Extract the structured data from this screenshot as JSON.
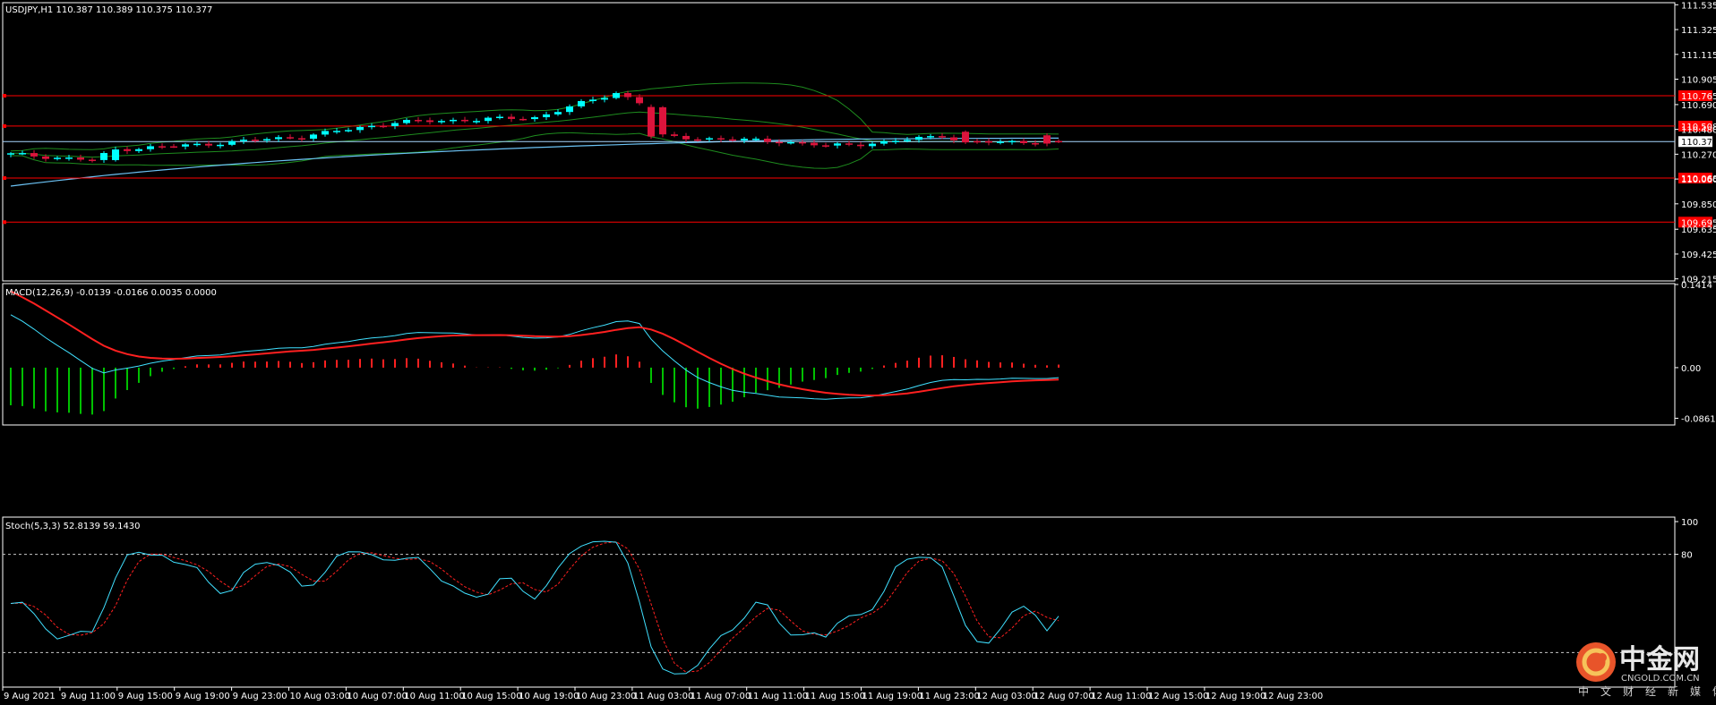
{
  "chart_data": [
    {
      "type": "candlestick",
      "panel": "main",
      "title": "USDJPY,H1  110.387 110.389 110.375 110.377",
      "y_ticks": [
        111.535,
        111.325,
        111.115,
        110.905,
        110.69,
        110.48,
        110.27,
        110.06,
        109.85,
        109.635,
        109.425,
        109.215
      ],
      "ylim": [
        109.205,
        111.545
      ],
      "current_price": 110.377,
      "horizontal_levels": [
        110.765,
        110.508,
        110.068,
        109.695
      ],
      "colors": {
        "bull": "#00ffff",
        "bear": "#dc143c",
        "levels": "#ff0000",
        "ma_long": "#6cc3f5",
        "bands": "#1e8c1e",
        "price_line": "#a8d8ff"
      },
      "overlays": [
        "moving average",
        "bollinger bands"
      ]
    },
    {
      "type": "line+histogram",
      "panel": "macd",
      "title": "MACD(12,26,9) -0.0139 -0.0166 0.0035 0.0000",
      "y_ticks": [
        0.1414,
        0.0,
        -0.0861
      ],
      "ylim": [
        -0.096,
        0.1414
      ],
      "colors": {
        "macd": "#40e0ff",
        "signal": "#ff2020",
        "hist_pos": "#ff2020",
        "hist_neg": "#00c000"
      }
    },
    {
      "type": "line",
      "panel": "stoch",
      "title": "Stoch(5,3,3) 52.8139 59.1430",
      "y_ticks": [
        100,
        80
      ],
      "ylim": [
        0,
        100
      ],
      "levels": [
        80,
        20
      ],
      "colors": {
        "k": "#40e0ff",
        "d": "#ff2020"
      }
    }
  ],
  "x_axis": {
    "labels": [
      "9 Aug 2021",
      "9 Aug 11:00",
      "9 Aug 15:00",
      "9 Aug 19:00",
      "9 Aug 23:00",
      "10 Aug 03:00",
      "10 Aug 07:00",
      "10 Aug 11:00",
      "10 Aug 15:00",
      "10 Aug 19:00",
      "10 Aug 23:00",
      "11 Aug 03:00",
      "11 Aug 07:00",
      "11 Aug 11:00",
      "11 Aug 15:00",
      "11 Aug 19:00",
      "11 Aug 23:00",
      "12 Aug 03:00",
      "12 Aug 07:00",
      "12 Aug 11:00",
      "12 Aug 15:00",
      "12 Aug 19:00",
      "12 Aug 23:00"
    ]
  },
  "watermark": {
    "name": "中金网",
    "domain": "CNGOLD.COM.CN",
    "tagline": "中文财经新媒体"
  }
}
